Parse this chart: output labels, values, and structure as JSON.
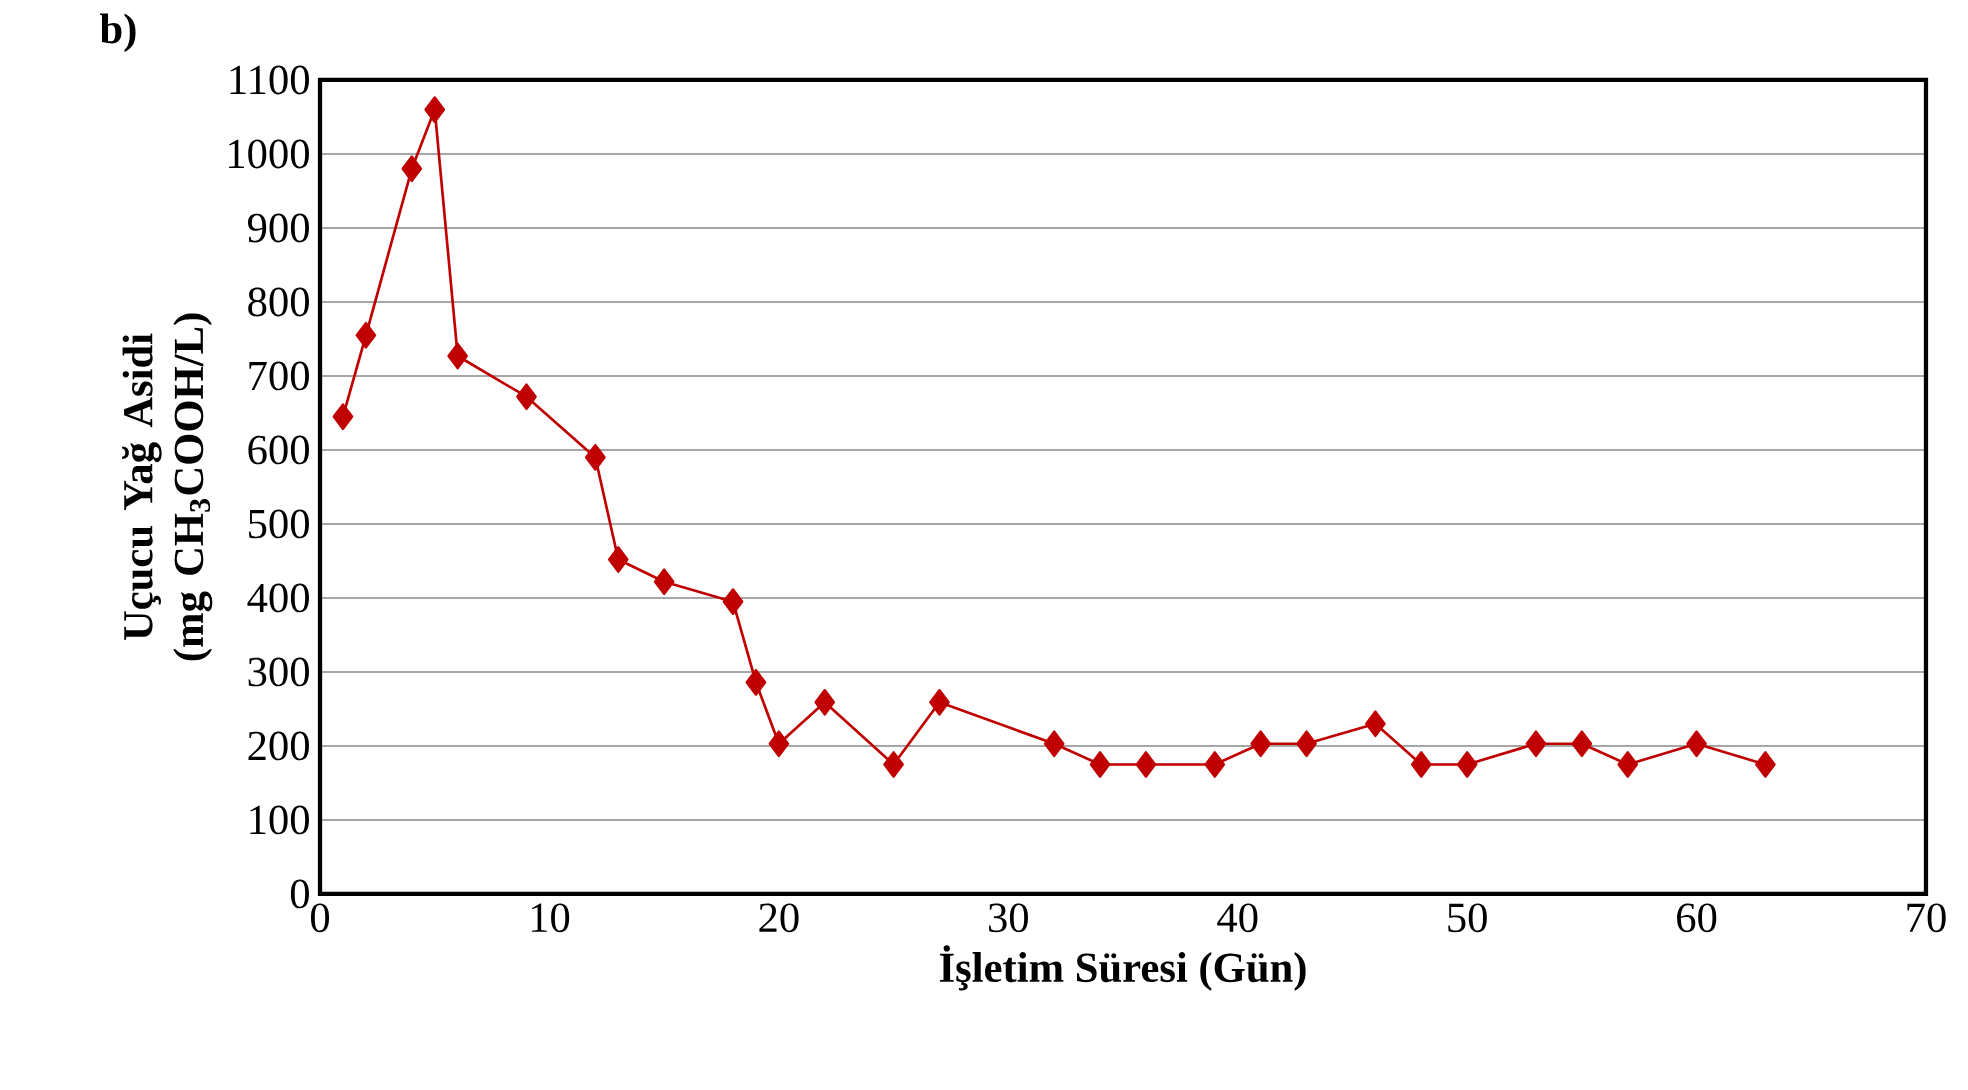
{
  "chart_data": {
    "type": "line",
    "xlabel": "İşletim Süresi (Gün)",
    "ylabel": "Uçucu Yağ  Asidi (mg CH$_{3}$COOH/L)",
    "annotations": [
      "b)"
    ],
    "x": [
      1,
      2,
      4,
      5,
      6,
      9,
      12,
      13,
      15,
      18,
      19,
      20,
      22,
      25,
      27,
      32,
      34,
      36,
      39,
      41,
      43,
      46,
      48,
      50,
      53,
      55,
      57,
      60,
      63
    ],
    "series": [
      {
        "color": "#c00000",
        "values": [
          645,
          755,
          980,
          1060,
          727,
          672,
          590,
          452,
          422,
          395,
          286,
          203,
          259,
          175,
          259,
          203,
          175,
          175,
          175,
          203,
          203,
          230,
          175,
          175,
          203,
          203,
          175,
          203,
          175
        ]
      }
    ],
    "xlim": [
      0,
      70
    ],
    "ylim": [
      0,
      1100
    ],
    "xticks": [
      0,
      10,
      20,
      30,
      40,
      50,
      60,
      70
    ],
    "yticks": [
      0,
      100,
      200,
      300,
      400,
      500,
      600,
      700,
      800,
      900,
      1000,
      1100
    ],
    "grid": "y",
    "marker": "diamond",
    "line_style": "solid"
  }
}
